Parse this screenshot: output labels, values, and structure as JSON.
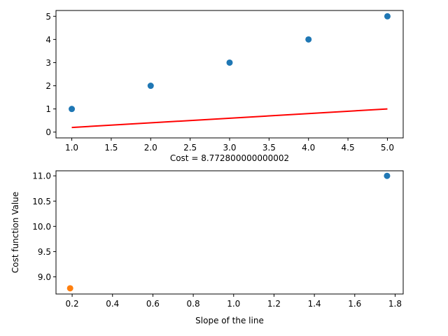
{
  "colors": {
    "scatter_blue": "#1f77b4",
    "scatter_orange": "#ff7f0e",
    "fit_line_red": "#ff0000",
    "axes": "#000000",
    "background": "#ffffff"
  },
  "chart_data": [
    {
      "type": "scatter",
      "title": "",
      "xlabel": "Cost = 8.772800000000002",
      "ylabel": "",
      "xlim": [
        0.8,
        5.2
      ],
      "ylim": [
        -0.25,
        5.25
      ],
      "grid": false,
      "xticks": [
        1.0,
        1.5,
        2.0,
        2.5,
        3.0,
        3.5,
        4.0,
        4.5,
        5.0
      ],
      "xtick_labels": [
        "1.0",
        "1.5",
        "2.0",
        "2.5",
        "3.0",
        "3.5",
        "4.0",
        "4.5",
        "5.0"
      ],
      "yticks": [
        0,
        1,
        2,
        3,
        4,
        5
      ],
      "ytick_labels": [
        "0",
        "1",
        "2",
        "3",
        "4",
        "5"
      ],
      "series": [
        {
          "kind": "points",
          "color": "#1f77b4",
          "x": [
            1,
            2,
            3,
            4,
            5
          ],
          "y": [
            1,
            2,
            3,
            4,
            5
          ]
        },
        {
          "kind": "line",
          "color": "#ff0000",
          "x": [
            1,
            5
          ],
          "y": [
            0.2,
            1.0
          ]
        }
      ]
    },
    {
      "type": "scatter",
      "title": "",
      "xlabel": "Slope of the line",
      "ylabel": "Cost function Value",
      "xlim": [
        0.12,
        1.84
      ],
      "ylim": [
        8.66,
        11.1
      ],
      "grid": false,
      "xticks": [
        0.2,
        0.4,
        0.6,
        0.8,
        1.0,
        1.2,
        1.4,
        1.6,
        1.8
      ],
      "xtick_labels": [
        "0.2",
        "0.4",
        "0.6",
        "0.8",
        "1.0",
        "1.2",
        "1.4",
        "1.6",
        "1.8"
      ],
      "yticks": [
        9.0,
        9.5,
        10.0,
        10.5,
        11.0
      ],
      "ytick_labels": [
        "9.0",
        "9.5",
        "10.0",
        "10.5",
        "11.0"
      ],
      "series": [
        {
          "kind": "points",
          "color": "#1f77b4",
          "x": [
            1.76
          ],
          "y": [
            11.0
          ]
        },
        {
          "kind": "points",
          "color": "#ff7f0e",
          "x": [
            0.19
          ],
          "y": [
            8.7728
          ]
        }
      ]
    }
  ]
}
